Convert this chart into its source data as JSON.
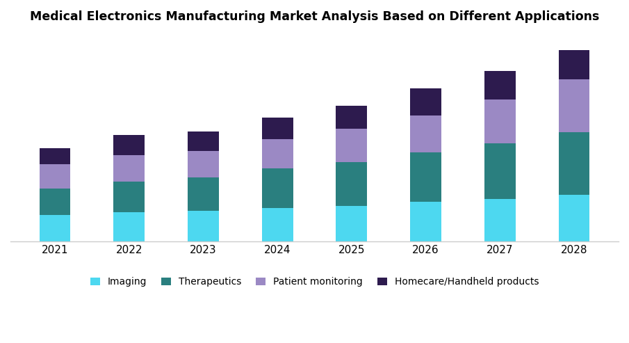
{
  "title": "Medical Electronics Manufacturing Market Analysis Based on Different Applications",
  "years": [
    2021,
    2022,
    2023,
    2024,
    2025,
    2026,
    2027,
    2028
  ],
  "imaging": [
    1.0,
    1.1,
    1.15,
    1.25,
    1.35,
    1.5,
    1.6,
    1.75
  ],
  "therapeutics": [
    1.0,
    1.15,
    1.25,
    1.5,
    1.65,
    1.85,
    2.1,
    2.35
  ],
  "patient_monitoring": [
    0.9,
    1.0,
    1.0,
    1.1,
    1.25,
    1.4,
    1.65,
    2.0
  ],
  "homecare": [
    0.6,
    0.75,
    0.75,
    0.8,
    0.85,
    1.0,
    1.05,
    1.1
  ],
  "color_imaging": "#4DD8F0",
  "color_therapeutics": "#2A7F7F",
  "color_patient_monitoring": "#9B89C4",
  "color_homecare": "#2D1B4E",
  "background_color": "#FFFFFF",
  "bar_width": 0.42,
  "legend_labels": [
    "Imaging",
    "Therapeutics",
    "Patient monitoring",
    "Homecare/Handheld products"
  ],
  "title_fontsize": 12.5,
  "legend_fontsize": 10,
  "tick_fontsize": 11
}
